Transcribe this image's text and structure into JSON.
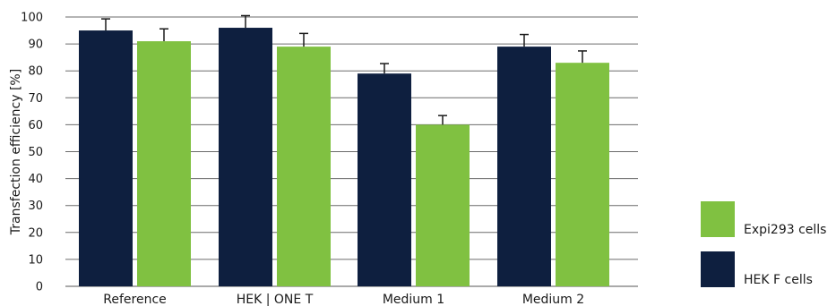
{
  "chart_data": {
    "type": "bar",
    "title": "",
    "xlabel": "",
    "ylabel": "Transfection efficiency [%]",
    "ylim": [
      0,
      100
    ],
    "yticks": [
      0,
      10,
      20,
      30,
      40,
      50,
      60,
      70,
      80,
      90,
      100
    ],
    "grid": true,
    "legend_position": "right",
    "categories": [
      "Reference",
      "HEK | ONE T",
      "Medium 1",
      "Medium 2"
    ],
    "series": [
      {
        "name": "HEK F cells",
        "color": "#0e1f3f",
        "values": [
          95,
          96,
          79,
          89
        ],
        "errors": [
          4.3,
          4.5,
          3.7,
          4.5
        ]
      },
      {
        "name": "Expi293 cells",
        "color": "#80c141",
        "values": [
          91,
          89,
          60,
          83
        ],
        "errors": [
          4.6,
          4.9,
          3.4,
          4.4
        ]
      }
    ],
    "legend_order": [
      "Expi293 cells",
      "HEK F cells"
    ]
  }
}
